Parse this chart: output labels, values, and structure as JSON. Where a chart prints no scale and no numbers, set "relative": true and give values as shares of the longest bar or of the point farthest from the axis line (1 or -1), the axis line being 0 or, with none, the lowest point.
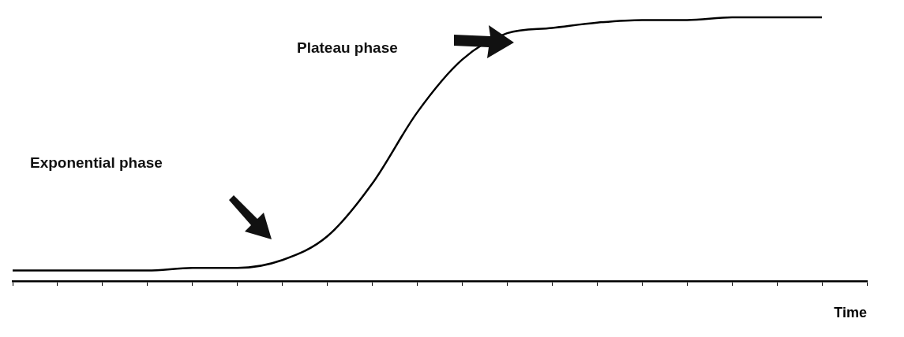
{
  "chart_data": {
    "type": "line",
    "relative": true,
    "xlabel": "Time",
    "categories": [
      null,
      null,
      null,
      null,
      null,
      null,
      null,
      null,
      null,
      null,
      null,
      null,
      null,
      null,
      null,
      null,
      null,
      null,
      null,
      null
    ],
    "series": [
      {
        "color": "#000000",
        "values": [
          0.04,
          0.04,
          0.04,
          0.04,
          0.05,
          0.05,
          0.08,
          0.17,
          0.37,
          0.64,
          0.84,
          0.94,
          0.96,
          0.98,
          0.99,
          0.99,
          1,
          1,
          1,
          null
        ]
      }
    ],
    "annotations": [
      "Exponential phase",
      "Plateau phase"
    ],
    "marker": "none",
    "line_style": "solid",
    "legend": false,
    "grid": false
  }
}
